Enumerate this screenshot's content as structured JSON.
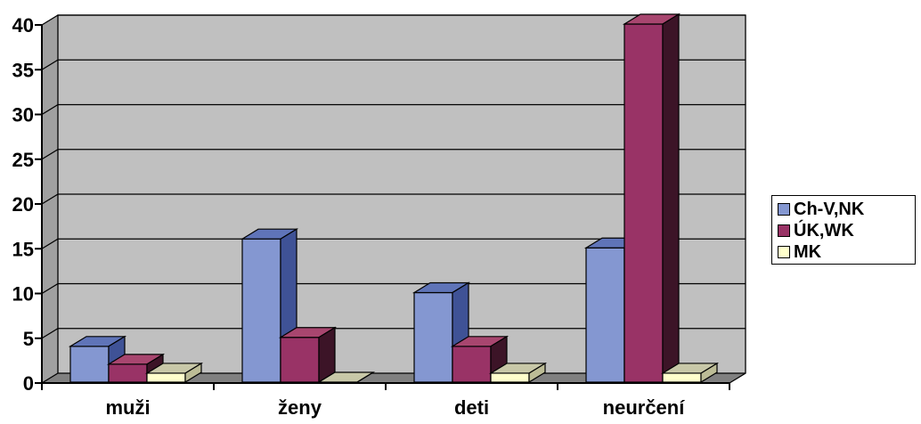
{
  "chart_data": {
    "type": "bar",
    "title": "",
    "xlabel": "",
    "ylabel": "",
    "categories": [
      "muži",
      "ženy",
      "deti",
      "neurčení"
    ],
    "series": [
      {
        "name": "Ch-V,NK",
        "values": [
          4,
          16,
          10,
          15
        ]
      },
      {
        "name": "ÚK,WK",
        "values": [
          2,
          5,
          4,
          40
        ]
      },
      {
        "name": "MK",
        "values": [
          1,
          0,
          1,
          1
        ]
      }
    ],
    "ylim": [
      0,
      40
    ],
    "yticks": [
      "0",
      "5",
      "10",
      "15",
      "20",
      "25",
      "30",
      "35",
      "40"
    ],
    "grid": true,
    "legend_position": "right",
    "three_d": true
  },
  "colors": {
    "series": [
      "#8497d1",
      "#993366",
      "#ffffcc"
    ],
    "series_top": [
      "#5f74b8",
      "#a8466f",
      "#c8c8a8"
    ],
    "series_side": [
      "#3f5296",
      "#3c1427",
      "#bcbc96"
    ],
    "wall": "#c0c0c0",
    "floor": "#808080"
  }
}
